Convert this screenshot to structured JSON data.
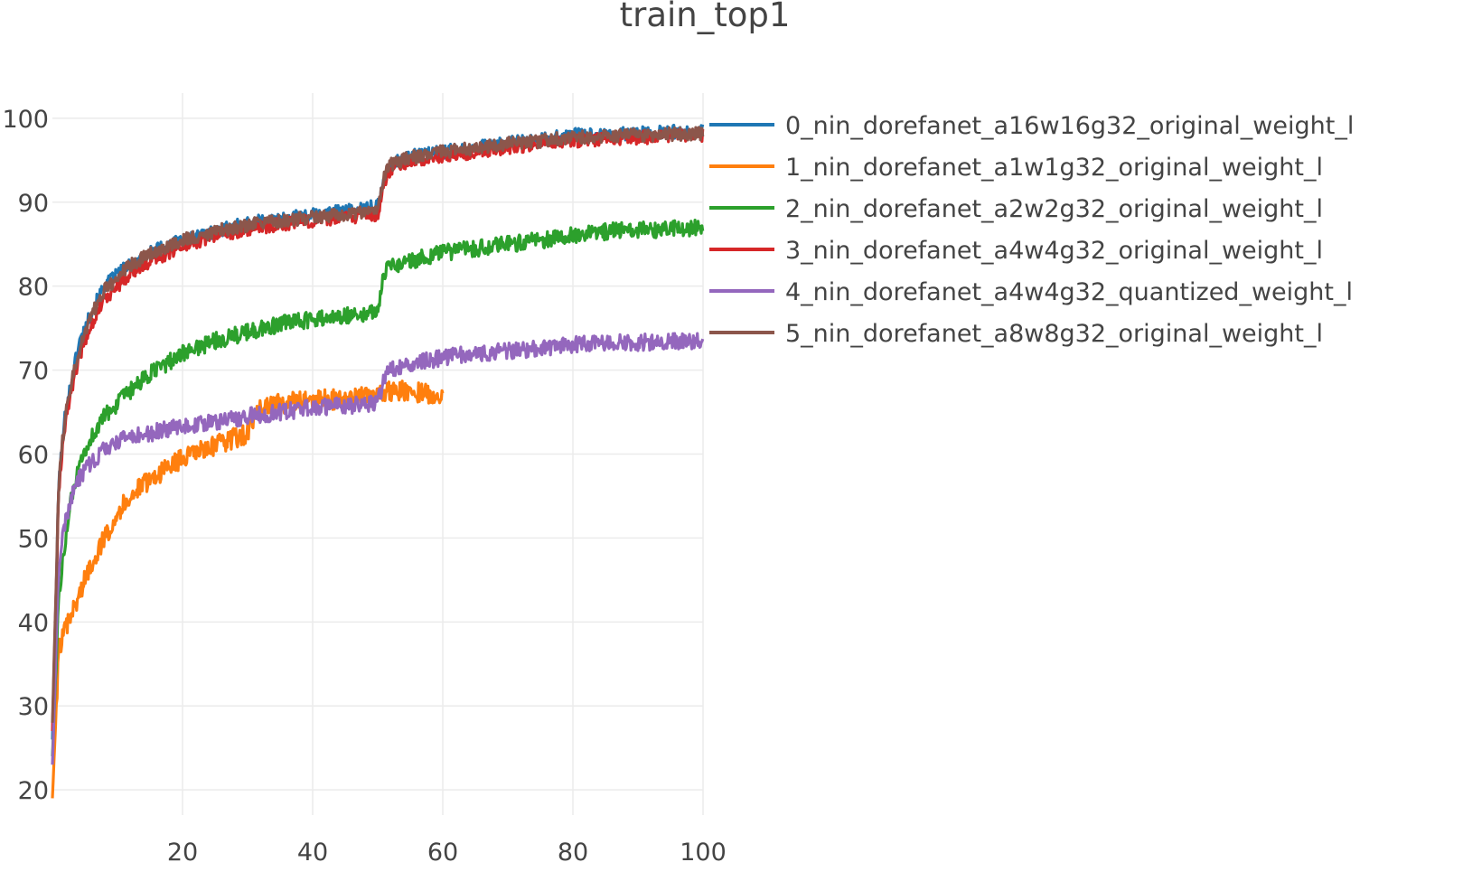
{
  "chart_data": {
    "type": "line",
    "title": "train_top1",
    "xlabel": "",
    "ylabel": "",
    "xlim": [
      0,
      100
    ],
    "ylim": [
      17,
      103
    ],
    "x_ticks": [
      20,
      40,
      60,
      80,
      100
    ],
    "y_ticks": [
      20,
      30,
      40,
      50,
      60,
      70,
      80,
      90,
      100
    ],
    "grid": true,
    "legend_position": "right",
    "series": [
      {
        "name": "0_nin_dorefanet_a16w16g32_original_weight_l",
        "color": "#1f77b4",
        "x": [
          0,
          1,
          2,
          3,
          4,
          5,
          6,
          8,
          10,
          12,
          15,
          18,
          20,
          25,
          30,
          35,
          40,
          45,
          50,
          51,
          52,
          55,
          60,
          65,
          70,
          75,
          80,
          85,
          90,
          95,
          100
        ],
        "y": [
          26,
          57,
          65,
          69,
          73,
          75,
          77,
          80,
          81.5,
          82.5,
          84,
          85,
          85.5,
          86.5,
          87.5,
          88,
          88.5,
          89,
          89.5,
          93,
          94.5,
          95.5,
          96,
          96.5,
          97,
          97.5,
          98,
          98,
          98.2,
          98.4,
          98.5
        ],
        "noise": 0.8
      },
      {
        "name": "1_nin_dorefanet_a1w1g32_original_weight_l",
        "color": "#ff7f0e",
        "x": [
          0,
          1,
          2,
          3,
          4,
          5,
          6,
          8,
          10,
          12,
          15,
          18,
          20,
          25,
          30,
          32,
          35,
          40,
          45,
          50,
          52,
          55,
          60
        ],
        "y": [
          19,
          37,
          39,
          41,
          43,
          45,
          47,
          50,
          53,
          55,
          57,
          58.5,
          59.5,
          61,
          62.5,
          65.5,
          66,
          66.5,
          66.5,
          67,
          67.5,
          67.5,
          67
        ],
        "noise": 1.2
      },
      {
        "name": "2_nin_dorefanet_a2w2g32_original_weight_l",
        "color": "#2ca02c",
        "x": [
          0,
          1,
          2,
          3,
          4,
          5,
          6,
          8,
          10,
          12,
          15,
          18,
          20,
          25,
          30,
          35,
          40,
          45,
          50,
          51,
          52,
          55,
          60,
          65,
          70,
          75,
          80,
          85,
          90,
          95,
          100
        ],
        "y": [
          24,
          43,
          50,
          55,
          58,
          60,
          62,
          64.5,
          66,
          67.5,
          69.5,
          71,
          72,
          73.5,
          74.5,
          75.5,
          76,
          76.5,
          77,
          81.5,
          82.5,
          83,
          84,
          84.5,
          85,
          85.5,
          86,
          86.5,
          86.7,
          86.8,
          87
        ],
        "noise": 1.0
      },
      {
        "name": "3_nin_dorefanet_a4w4g32_original_weight_l",
        "color": "#d62728",
        "x": [
          0,
          1,
          2,
          3,
          4,
          5,
          6,
          8,
          10,
          12,
          15,
          18,
          20,
          25,
          30,
          35,
          40,
          45,
          50,
          51,
          52,
          55,
          60,
          65,
          70,
          75,
          80,
          85,
          90,
          95,
          100
        ],
        "y": [
          27,
          56,
          64,
          68,
          71,
          73.5,
          75.5,
          78.5,
          80,
          81.5,
          83,
          84,
          84.8,
          86,
          86.8,
          87.3,
          87.8,
          88.2,
          88.5,
          92.5,
          94,
          95,
          95.5,
          96,
          96.5,
          97,
          97.3,
          97.5,
          97.7,
          97.8,
          98
        ],
        "noise": 0.8
      },
      {
        "name": "4_nin_dorefanet_a4w4g32_quantized_weight_l",
        "color": "#9467bd",
        "x": [
          0,
          1,
          2,
          3,
          4,
          5,
          6,
          8,
          10,
          12,
          15,
          18,
          20,
          25,
          30,
          35,
          40,
          45,
          50,
          51,
          52,
          55,
          60,
          65,
          70,
          75,
          80,
          85,
          90,
          95,
          100
        ],
        "y": [
          23,
          47,
          52,
          55,
          57,
          58,
          59,
          60.5,
          61.5,
          62,
          62.5,
          63,
          63.3,
          63.8,
          64.5,
          65,
          65.5,
          65.8,
          66,
          69,
          70,
          70.8,
          71.5,
          72,
          72.3,
          72.6,
          73,
          73.2,
          73.3,
          73.4,
          73.5
        ],
        "noise": 1.0
      },
      {
        "name": "5_nin_dorefanet_a8w8g32_original_weight_l",
        "color": "#8c564b",
        "x": [
          0,
          1,
          2,
          3,
          4,
          5,
          6,
          8,
          10,
          12,
          15,
          18,
          20,
          25,
          30,
          35,
          40,
          45,
          50,
          51,
          52,
          55,
          60,
          65,
          70,
          75,
          80,
          85,
          90,
          95,
          100
        ],
        "y": [
          28,
          57,
          65,
          69,
          72,
          74.5,
          76.5,
          79.5,
          81,
          82.5,
          83.8,
          84.8,
          85.5,
          86.5,
          87.3,
          87.8,
          88.2,
          88.6,
          89,
          93,
          94.5,
          95.3,
          96,
          96.5,
          97,
          97.3,
          97.7,
          97.9,
          98,
          98.1,
          98.2
        ],
        "noise": 0.8
      }
    ]
  }
}
